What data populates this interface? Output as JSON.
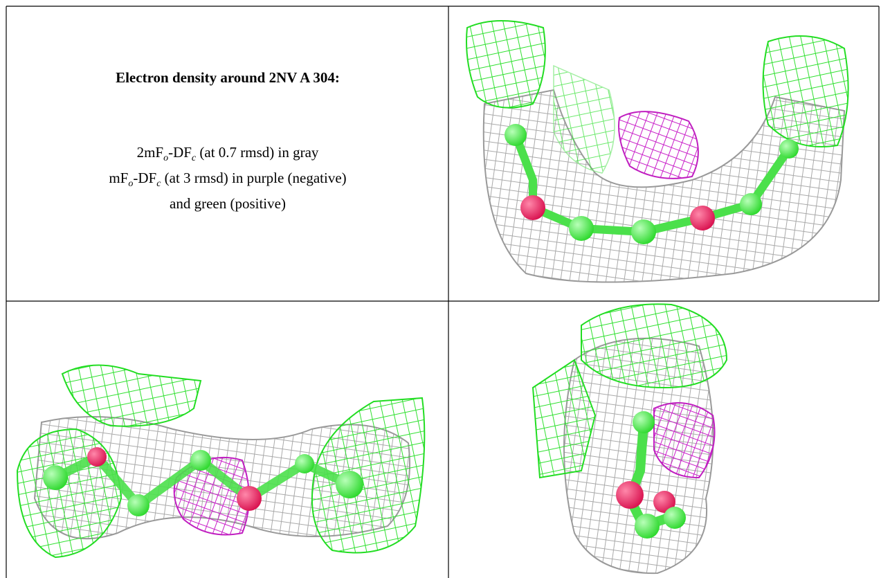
{
  "cell_text": {
    "title": "Electron density around 2NV A 304:",
    "lines": [
      [
        {
          "text": "2mF"
        },
        {
          "sub": "o"
        },
        {
          "text": "-DF"
        },
        {
          "sub": "c"
        },
        {
          "text": " (at 0.7 rmsd) in gray"
        }
      ],
      [
        {
          "text": "mF"
        },
        {
          "sub": "o"
        },
        {
          "text": "-DF"
        },
        {
          "sub": "c"
        },
        {
          "text": " (at 3 rmsd) in purple (negative)"
        }
      ],
      [
        {
          "text": "and green (positive)"
        }
      ]
    ]
  }
}
